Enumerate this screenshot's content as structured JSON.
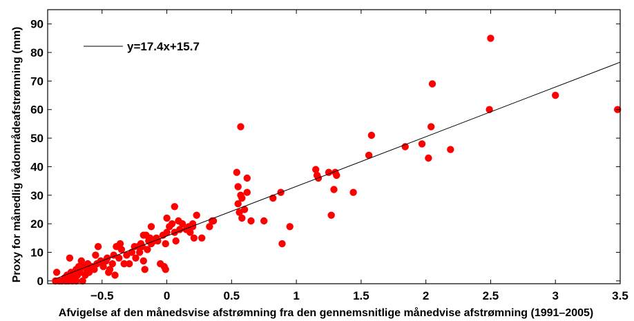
{
  "chart_data": {
    "type": "scatter",
    "title": "",
    "xlabel": "Afvigelse af den månedsvise afstrømning fra den gennemsnitlige månedvise afstrømning (1991–2005)",
    "ylabel": "Proxy for månedlig vådområdeafstrømning (mm)",
    "xlim": [
      -0.92,
      3.5
    ],
    "ylim": [
      -1,
      95
    ],
    "x_ticks": [
      -0.5,
      0,
      0.5,
      1,
      1.5,
      2,
      2.5,
      3,
      3.5
    ],
    "x_tick_labels": [
      "−0.5",
      "0",
      "0.5",
      "1",
      "1.5",
      "2",
      "2.5",
      "3",
      "3.5"
    ],
    "y_ticks": [
      0,
      10,
      20,
      30,
      40,
      50,
      60,
      70,
      80,
      90
    ],
    "y_tick_labels": [
      "0",
      "10",
      "20",
      "30",
      "40",
      "50",
      "60",
      "70",
      "80",
      "90"
    ],
    "grid": false,
    "legend_position": "top-left",
    "trendline": {
      "slope": 17.4,
      "intercept": 15.7,
      "label": "y=17.4x+15.7",
      "color": "#000000"
    },
    "point_color": "#ff0000",
    "points": [
      [
        -0.86,
        0
      ],
      [
        -0.85,
        3
      ],
      [
        -0.83,
        0
      ],
      [
        -0.81,
        0
      ],
      [
        -0.79,
        1
      ],
      [
        -0.78,
        0
      ],
      [
        -0.77,
        2
      ],
      [
        -0.76,
        0
      ],
      [
        -0.75,
        8
      ],
      [
        -0.75,
        1
      ],
      [
        -0.74,
        3
      ],
      [
        -0.73,
        0
      ],
      [
        -0.72,
        2
      ],
      [
        -0.71,
        1
      ],
      [
        -0.7,
        4
      ],
      [
        -0.7,
        0
      ],
      [
        -0.69,
        2
      ],
      [
        -0.68,
        5
      ],
      [
        -0.67,
        3
      ],
      [
        -0.66,
        7
      ],
      [
        -0.65,
        0
      ],
      [
        -0.64,
        5
      ],
      [
        -0.63,
        2
      ],
      [
        -0.62,
        4
      ],
      [
        -0.61,
        6
      ],
      [
        -0.6,
        3
      ],
      [
        -0.58,
        5
      ],
      [
        -0.56,
        4
      ],
      [
        -0.55,
        9
      ],
      [
        -0.54,
        6
      ],
      [
        -0.53,
        12
      ],
      [
        -0.51,
        7
      ],
      [
        -0.49,
        5
      ],
      [
        -0.47,
        7
      ],
      [
        -0.46,
        8
      ],
      [
        -0.45,
        3
      ],
      [
        -0.44,
        4
      ],
      [
        -0.42,
        6
      ],
      [
        -0.41,
        9
      ],
      [
        -0.4,
        2
      ],
      [
        -0.39,
        12
      ],
      [
        -0.37,
        8
      ],
      [
        -0.36,
        13
      ],
      [
        -0.35,
        11
      ],
      [
        -0.33,
        6
      ],
      [
        -0.31,
        9
      ],
      [
        -0.29,
        6
      ],
      [
        -0.27,
        10
      ],
      [
        -0.25,
        12
      ],
      [
        -0.24,
        8
      ],
      [
        -0.22,
        12
      ],
      [
        -0.21,
        10
      ],
      [
        -0.2,
        13
      ],
      [
        -0.19,
        12
      ],
      [
        -0.18,
        16
      ],
      [
        -0.17,
        4
      ],
      [
        -0.18,
        7
      ],
      [
        -0.16,
        16
      ],
      [
        -0.15,
        11
      ],
      [
        -0.14,
        14
      ],
      [
        -0.13,
        15
      ],
      [
        -0.12,
        19
      ],
      [
        -0.12,
        13
      ],
      [
        -0.1,
        14
      ],
      [
        -0.08,
        15
      ],
      [
        -0.07,
        14
      ],
      [
        -0.05,
        6
      ],
      [
        -0.03,
        16
      ],
      [
        -0.02,
        5
      ],
      [
        -0.01,
        4
      ],
      [
        -0.01,
        13
      ],
      [
        0.0,
        17
      ],
      [
        0.0,
        22
      ],
      [
        0.02,
        19
      ],
      [
        0.04,
        20
      ],
      [
        0.06,
        26
      ],
      [
        0.06,
        17
      ],
      [
        0.07,
        14
      ],
      [
        0.09,
        21
      ],
      [
        0.1,
        18
      ],
      [
        0.12,
        20
      ],
      [
        0.15,
        18
      ],
      [
        0.17,
        19
      ],
      [
        0.18,
        17
      ],
      [
        0.2,
        19
      ],
      [
        0.2,
        20
      ],
      [
        0.21,
        15
      ],
      [
        0.23,
        23
      ],
      [
        0.27,
        15
      ],
      [
        0.33,
        19
      ],
      [
        0.35,
        21
      ],
      [
        0.36,
        21
      ],
      [
        0.54,
        38
      ],
      [
        0.55,
        27
      ],
      [
        0.55,
        33
      ],
      [
        0.56,
        24
      ],
      [
        0.57,
        30
      ],
      [
        0.57,
        54
      ],
      [
        0.58,
        22
      ],
      [
        0.58,
        29
      ],
      [
        0.6,
        25
      ],
      [
        0.62,
        31
      ],
      [
        0.62,
        36
      ],
      [
        0.65,
        21
      ],
      [
        0.75,
        21
      ],
      [
        0.82,
        29
      ],
      [
        0.88,
        31
      ],
      [
        0.89,
        13
      ],
      [
        0.95,
        19
      ],
      [
        1.15,
        39
      ],
      [
        1.16,
        37
      ],
      [
        1.17,
        36
      ],
      [
        1.25,
        38
      ],
      [
        1.27,
        23
      ],
      [
        1.29,
        32
      ],
      [
        1.3,
        38
      ],
      [
        1.31,
        37
      ],
      [
        1.44,
        31
      ],
      [
        1.56,
        44
      ],
      [
        1.58,
        51
      ],
      [
        1.84,
        47
      ],
      [
        1.97,
        48
      ],
      [
        2.02,
        43
      ],
      [
        2.04,
        54
      ],
      [
        2.05,
        69
      ],
      [
        2.19,
        46
      ],
      [
        2.49,
        60
      ],
      [
        2.5,
        85
      ],
      [
        3.0,
        65
      ],
      [
        3.48,
        60
      ]
    ]
  }
}
